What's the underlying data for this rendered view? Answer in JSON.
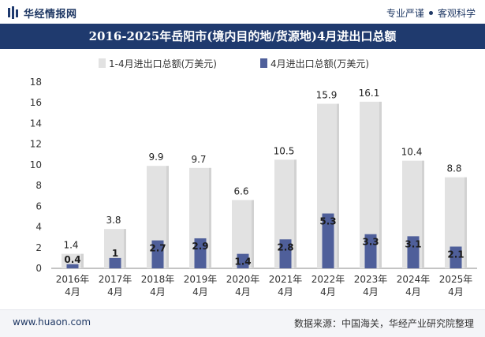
{
  "header": {
    "brand_name": "华经情报网",
    "tagline_left": "专业严谨",
    "tagline_right": "客观科学"
  },
  "chart_data": {
    "type": "bar",
    "title": "2016-2025年岳阳市(境内目的地/货源地)4月进出口总额",
    "categories": [
      "2016年\n4月",
      "2017年\n4月",
      "2018年\n4月",
      "2019年\n4月",
      "2020年\n4月",
      "2021年\n4月",
      "2022年\n4月",
      "2023年\n4月",
      "2024年\n4月",
      "2025年\n4月"
    ],
    "series": [
      {
        "name": "1-4月进出口总额(万美元)",
        "color": "#e2e2e2",
        "values": [
          1.4,
          3.8,
          9.9,
          9.7,
          6.6,
          10.5,
          15.9,
          16.1,
          10.4,
          8.8
        ]
      },
      {
        "name": "4月进出口总额(万美元)",
        "color": "#4f5f9a",
        "values": [
          0.4,
          1,
          2.7,
          2.9,
          1.4,
          2.8,
          5.3,
          3.3,
          3.1,
          2.1
        ]
      }
    ],
    "ylim": [
      0,
      18
    ],
    "yticks": [
      0,
      2,
      4,
      6,
      8,
      10,
      12,
      14,
      16,
      18
    ],
    "legend_position": "top",
    "grid": false
  },
  "footer": {
    "url": "www.huaon.com",
    "source": "数据来源：中国海关，华经产业研究院整理"
  }
}
